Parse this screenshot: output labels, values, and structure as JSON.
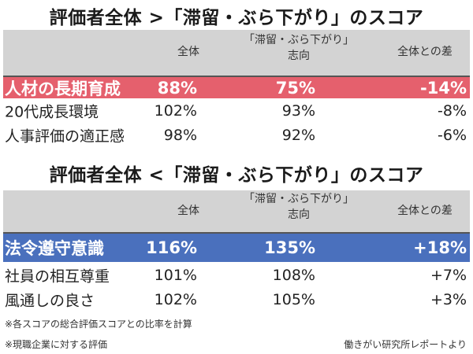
{
  "colors": {
    "negative_highlight": "#e5606d",
    "positive_highlight": "#4a70bd",
    "header_bg": "#d3d3d3"
  },
  "headers": {
    "overall": "全体",
    "group_line1": "「滞留・ぶら下がり」",
    "group_line2": "志向",
    "diff": "全体との差"
  },
  "tables": [
    {
      "title": "評価者全体 >「滞留・ぶら下がり」のスコア",
      "rows": [
        {
          "label": "人材の長期育成",
          "overall": "88%",
          "group": "75%",
          "diff": "-14%"
        },
        {
          "label": "20代成長環境",
          "overall": "102%",
          "group": "93%",
          "diff": "-8%"
        },
        {
          "label": "人事評価の適正感",
          "overall": "98%",
          "group": "92%",
          "diff": "-6%"
        }
      ]
    },
    {
      "title": "評価者全体 <「滞留・ぶら下がり」のスコア",
      "rows": [
        {
          "label": "法令遵守意識",
          "overall": "116%",
          "group": "135%",
          "diff": "+18%"
        },
        {
          "label": "社員の相互尊重",
          "overall": "101%",
          "group": "108%",
          "diff": "+7%"
        },
        {
          "label": "風通しの良さ",
          "overall": "102%",
          "group": "105%",
          "diff": "+3%"
        }
      ]
    }
  ],
  "notes": {
    "note1": "※各スコアの総合評価スコアとの比率を計算",
    "note2": "※現職企業に対する評価",
    "source": "働きがい研究所レポートより"
  }
}
